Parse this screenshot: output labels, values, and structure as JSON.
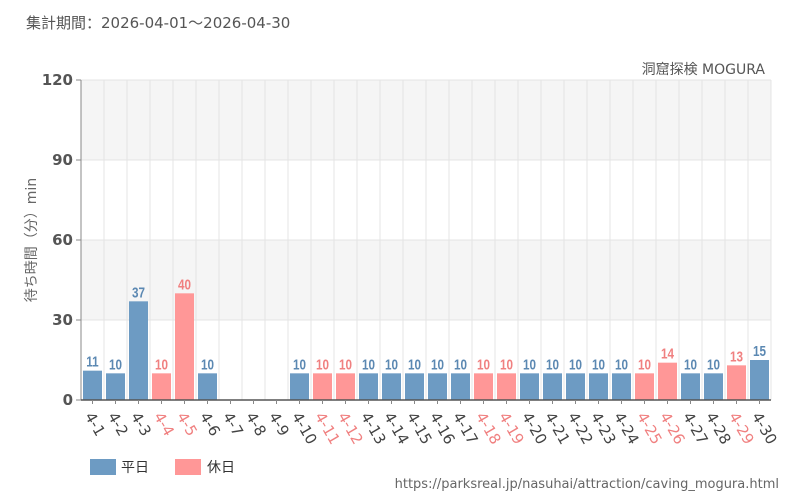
{
  "header": {
    "period": "集計期間：2026-04-01～2026-04-30"
  },
  "chart_data": {
    "type": "bar",
    "title": "洞窟探検 MOGURA",
    "ylabel": "待ち時間（分）min",
    "xlabel": "",
    "ylim": [
      0,
      120
    ],
    "yticks": [
      0,
      30,
      60,
      90,
      120
    ],
    "grid": true,
    "legend_position": "bottom-left",
    "categories": [
      "4-1",
      "4-2",
      "4-3",
      "4-4",
      "4-5",
      "4-6",
      "4-7",
      "4-8",
      "4-9",
      "4-10",
      "4-11",
      "4-12",
      "4-13",
      "4-14",
      "4-15",
      "4-16",
      "4-17",
      "4-18",
      "4-19",
      "4-20",
      "4-21",
      "4-22",
      "4-23",
      "4-24",
      "4-25",
      "4-26",
      "4-27",
      "4-28",
      "4-29",
      "4-30"
    ],
    "values": [
      11,
      10,
      37,
      10,
      40,
      10,
      null,
      null,
      null,
      10,
      10,
      10,
      10,
      10,
      10,
      10,
      10,
      10,
      10,
      10,
      10,
      10,
      10,
      10,
      10,
      14,
      10,
      10,
      13,
      15
    ],
    "day_type": [
      "weekday",
      "weekday",
      "weekday",
      "holiday",
      "holiday",
      "weekday",
      "weekday",
      "weekday",
      "weekday",
      "weekday",
      "holiday",
      "holiday",
      "weekday",
      "weekday",
      "weekday",
      "weekday",
      "weekday",
      "holiday",
      "holiday",
      "weekday",
      "weekday",
      "weekday",
      "weekday",
      "weekday",
      "holiday",
      "holiday",
      "weekday",
      "weekday",
      "holiday",
      "weekday"
    ],
    "series": [
      {
        "key": "weekday",
        "name": "平日",
        "color": "#6d9bc3"
      },
      {
        "key": "holiday",
        "name": "休日",
        "color": "#ff9797"
      }
    ]
  },
  "footer": {
    "source_url": "https://parksreal.jp/nasuhai/attraction/caving_mogura.html"
  }
}
